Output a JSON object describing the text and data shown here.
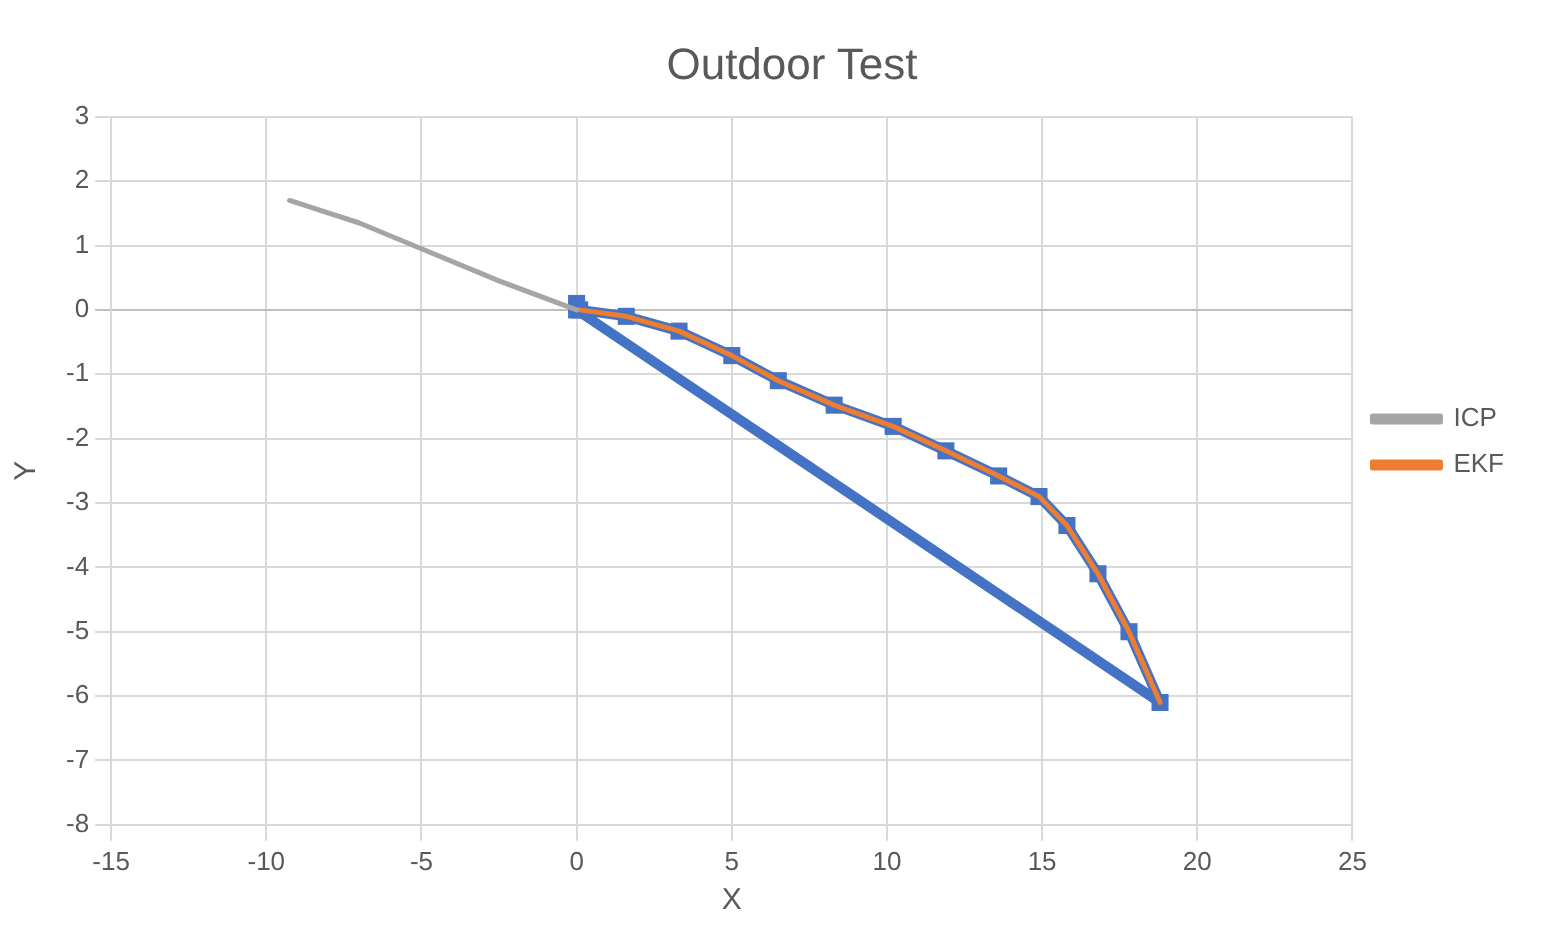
{
  "chart_data": {
    "type": "line",
    "title": "Outdoor Test",
    "xlabel": "X",
    "ylabel": "Y",
    "xlim": [
      -15,
      25
    ],
    "xticks": [
      -15,
      -10,
      -5,
      0,
      5,
      10,
      15,
      20,
      25
    ],
    "ylim": [
      -8,
      3
    ],
    "yticks": [
      -8,
      -7,
      -6,
      -5,
      -4,
      -3,
      -2,
      -1,
      0,
      1,
      2,
      3
    ],
    "grid": true,
    "legend": "right",
    "series": [
      {
        "color": "#4472c4",
        "marker": "square",
        "x": [
          0,
          0.1,
          1.6,
          3.3,
          5.0,
          6.5,
          8.3,
          10.2,
          11.9,
          13.6,
          14.9,
          15.8,
          16.8,
          17.8,
          18.8,
          0
        ],
        "values": [
          0.1,
          0,
          -0.1,
          -0.33,
          -0.71,
          -1.1,
          -1.48,
          -1.81,
          -2.19,
          -2.58,
          -2.9,
          -3.35,
          -4.1,
          -5.0,
          -6.1,
          0
        ]
      },
      {
        "name": "EKF",
        "color": "#ed7d31",
        "marker": "none",
        "x": [
          0.1,
          1.6,
          3.3,
          5.0,
          6.5,
          8.3,
          10.2,
          11.9,
          13.6,
          14.9,
          15.8,
          16.8,
          17.8,
          18.8
        ],
        "values": [
          0,
          -0.1,
          -0.33,
          -0.71,
          -1.1,
          -1.48,
          -1.81,
          -2.19,
          -2.58,
          -2.9,
          -3.35,
          -4.1,
          -5.0,
          -6.1
        ]
      },
      {
        "name": "ICP",
        "color": "#a5a5a5",
        "marker": "none",
        "x": [
          0,
          -2.5,
          -5,
          -7,
          -9.25
        ],
        "values": [
          0,
          0.45,
          0.95,
          1.35,
          1.7
        ]
      }
    ]
  }
}
